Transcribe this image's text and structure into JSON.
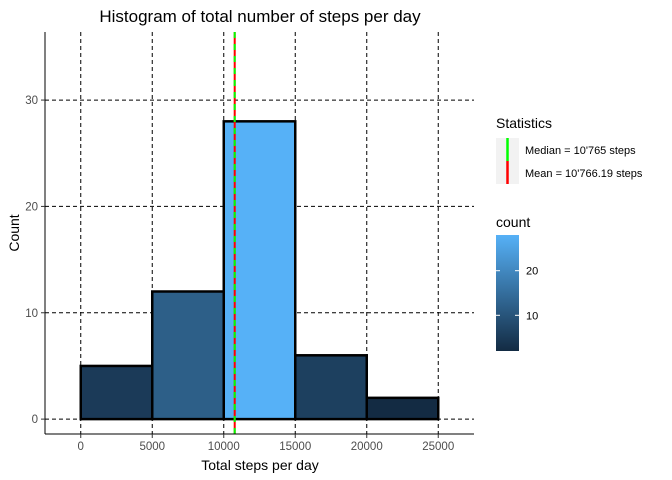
{
  "chart_data": {
    "type": "bar",
    "title": "Histogram of total number of steps per day",
    "xlabel": "Total steps per day",
    "ylabel": "Count",
    "bins": [
      {
        "x0": 0,
        "x1": 5000,
        "count": 5
      },
      {
        "x0": 5000,
        "x1": 10000,
        "count": 12
      },
      {
        "x0": 10000,
        "x1": 15000,
        "count": 28
      },
      {
        "x0": 15000,
        "x1": 20000,
        "count": 6
      },
      {
        "x0": 20000,
        "x1": 25000,
        "count": 2
      }
    ],
    "xlim": [
      -2500,
      27500
    ],
    "ylim": [
      -1.4,
      36.4
    ],
    "xticks": [
      0,
      5000,
      10000,
      15000,
      20000,
      25000
    ],
    "yticks": [
      0,
      10,
      20,
      30
    ],
    "grid": true,
    "grid_style": "dashed",
    "median": 10765,
    "mean": 10766.19,
    "colors": {
      "median_line": "#00ff00",
      "mean_line": "#ff0000",
      "fill_low": "#132b43",
      "fill_high": "#56b1f7",
      "bar_outline": "#000000"
    },
    "legends": {
      "statistics": {
        "title": "Statistics",
        "entries": [
          {
            "label": "Median = 10'765 steps",
            "color": "#00ff00"
          },
          {
            "label": "Mean = 10'766.19 steps",
            "color": "#ff0000"
          }
        ]
      },
      "count": {
        "title": "count",
        "min": 2,
        "max": 28,
        "ticks": [
          10,
          20
        ]
      }
    },
    "legend_position": "right"
  }
}
